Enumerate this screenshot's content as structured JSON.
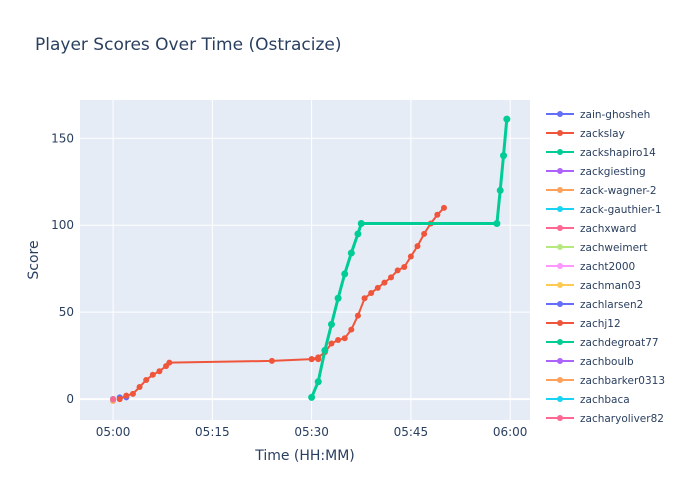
{
  "chart_data": {
    "type": "line",
    "title": "Player Scores Over Time (Ostracize)",
    "xlabel": "Time (HH:MM)",
    "ylabel": "Score",
    "xlim": [
      "04:55",
      "06:03"
    ],
    "ylim": [
      -12,
      172
    ],
    "x_ticks": [
      "05:00",
      "05:15",
      "05:30",
      "05:45",
      "06:00"
    ],
    "y_ticks": [
      0,
      50,
      100,
      150
    ],
    "grid": true,
    "legend_placement": "right",
    "series": [
      {
        "name": "zain-ghosheh",
        "color": "#636efa",
        "points": [
          [
            "05:01",
            1
          ],
          [
            "05:02",
            1
          ]
        ]
      },
      {
        "name": "zackslay",
        "color": "#EF553B",
        "points": [
          [
            "05:30",
            23
          ],
          [
            "05:31",
            23
          ]
        ]
      },
      {
        "name": "zackshapiro14",
        "color": "#00cc96",
        "points": [
          [
            "05:30",
            1
          ],
          [
            "05:31",
            10
          ],
          [
            "05:32",
            28
          ],
          [
            "05:33",
            43
          ],
          [
            "05:34",
            58
          ],
          [
            "05:35",
            72
          ],
          [
            "05:36",
            84
          ],
          [
            "05:37",
            95
          ],
          [
            "05:37:30",
            101
          ],
          [
            "05:58",
            101
          ],
          [
            "05:58:30",
            120
          ],
          [
            "05:59",
            140
          ],
          [
            "05:59:30",
            161
          ]
        ]
      },
      {
        "name": "zackgiesting",
        "color": "#ab63fa",
        "points": [
          [
            "05:00",
            0
          ]
        ]
      },
      {
        "name": "zack-wagner-2",
        "color": "#FFA15A",
        "points": [
          [
            "05:00",
            -1
          ]
        ]
      },
      {
        "name": "zack-gauthier-1",
        "color": "#19d3f3",
        "points": [
          [
            "05:00",
            0
          ]
        ]
      },
      {
        "name": "zachxward",
        "color": "#FF6692",
        "points": [
          [
            "05:00",
            0
          ]
        ]
      },
      {
        "name": "zachweimert",
        "color": "#B6E880",
        "points": [
          [
            "05:00",
            0
          ]
        ]
      },
      {
        "name": "zacht2000",
        "color": "#FF97FF",
        "points": [
          [
            "05:00",
            0
          ]
        ]
      },
      {
        "name": "zachman03",
        "color": "#FECB52",
        "points": [
          [
            "05:00",
            0
          ]
        ]
      },
      {
        "name": "zachlarsen2",
        "color": "#636efa",
        "points": [
          [
            "05:00",
            0
          ]
        ]
      },
      {
        "name": "zachj12",
        "color": "#EF553B",
        "points": [
          [
            "05:01",
            0
          ],
          [
            "05:02",
            2
          ],
          [
            "05:03",
            3
          ],
          [
            "05:04",
            7
          ],
          [
            "05:05",
            11
          ],
          [
            "05:06",
            14
          ],
          [
            "05:07",
            16
          ],
          [
            "05:08",
            19
          ],
          [
            "05:08:30",
            21
          ],
          [
            "05:24",
            22
          ],
          [
            "05:30",
            23
          ],
          [
            "05:31",
            24
          ],
          [
            "05:32",
            27
          ],
          [
            "05:33",
            32
          ],
          [
            "05:34",
            34
          ],
          [
            "05:35",
            35
          ],
          [
            "05:36",
            40
          ],
          [
            "05:37",
            48
          ],
          [
            "05:38",
            58
          ],
          [
            "05:39",
            61
          ],
          [
            "05:40",
            64
          ],
          [
            "05:41",
            67
          ],
          [
            "05:42",
            70
          ],
          [
            "05:43",
            74
          ],
          [
            "05:44",
            76
          ],
          [
            "05:45",
            82
          ],
          [
            "05:46",
            88
          ],
          [
            "05:47",
            95
          ],
          [
            "05:48",
            101
          ],
          [
            "05:49",
            106
          ],
          [
            "05:50",
            110
          ]
        ]
      },
      {
        "name": "zachdegroat77",
        "color": "#00cc96",
        "points": [
          [
            "05:00",
            0
          ]
        ]
      },
      {
        "name": "zachboulb",
        "color": "#ab63fa",
        "points": [
          [
            "05:00",
            0
          ]
        ]
      },
      {
        "name": "zachbarker0313",
        "color": "#FFA15A",
        "points": [
          [
            "05:00",
            0
          ]
        ]
      },
      {
        "name": "zachbaca",
        "color": "#19d3f3",
        "points": [
          [
            "05:00",
            0
          ]
        ]
      },
      {
        "name": "zacharyoliver82",
        "color": "#FF6692",
        "points": [
          [
            "05:00",
            0
          ]
        ]
      }
    ]
  }
}
